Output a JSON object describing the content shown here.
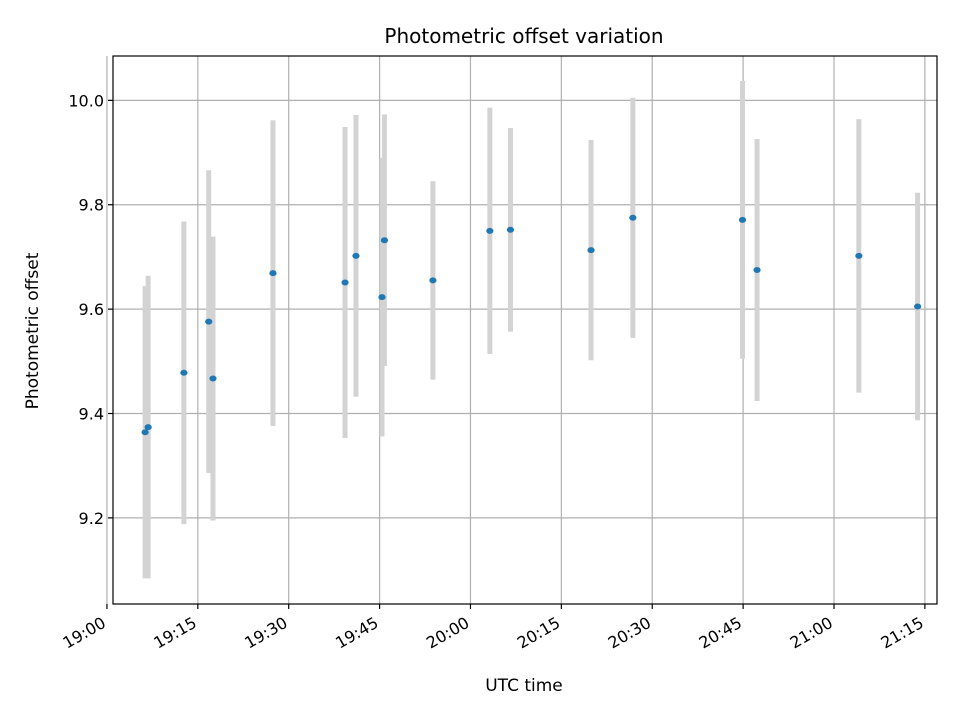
{
  "chart_data": {
    "type": "scatter",
    "title": "Photometric offset variation",
    "xlabel": "UTC time",
    "ylabel": "Photometric offset",
    "x_is_time": true,
    "xlim": [
      "19:01",
      "21:17"
    ],
    "ylim": [
      9.035,
      10.085
    ],
    "xticks": [
      "19:00",
      "19:15",
      "19:30",
      "19:45",
      "20:00",
      "20:15",
      "20:30",
      "20:45",
      "21:00",
      "21:15"
    ],
    "yticks": [
      9.2,
      9.4,
      9.6,
      9.8,
      10.0
    ],
    "ytick_labels": [
      "9.2",
      "9.4",
      "9.6",
      "9.8",
      "10.0"
    ],
    "grid": true,
    "colors": {
      "point": "#1f77b4",
      "errorbar": "#d3d3d3",
      "grid": "#b0b0b0",
      "axis": "#000000"
    },
    "points": [
      {
        "t": "19:06:18",
        "y": 9.364,
        "err": 0.28
      },
      {
        "t": "19:06:48",
        "y": 9.374,
        "err": 0.29
      },
      {
        "t": "19:12:42",
        "y": 9.478,
        "err": 0.29
      },
      {
        "t": "19:16:48",
        "y": 9.576,
        "err": 0.29
      },
      {
        "t": "19:17:30",
        "y": 9.467,
        "err": 0.272
      },
      {
        "t": "19:27:24",
        "y": 9.669,
        "err": 0.293
      },
      {
        "t": "19:39:18",
        "y": 9.651,
        "err": 0.298
      },
      {
        "t": "19:41:06",
        "y": 9.702,
        "err": 0.27
      },
      {
        "t": "19:45:24",
        "y": 9.623,
        "err": 0.267
      },
      {
        "t": "19:45:48",
        "y": 9.732,
        "err": 0.241
      },
      {
        "t": "19:53:48",
        "y": 9.655,
        "err": 0.19
      },
      {
        "t": "20:03:12",
        "y": 9.75,
        "err": 0.236
      },
      {
        "t": "20:06:36",
        "y": 9.752,
        "err": 0.195
      },
      {
        "t": "20:19:54",
        "y": 9.713,
        "err": 0.211
      },
      {
        "t": "20:26:48",
        "y": 9.775,
        "err": 0.23
      },
      {
        "t": "20:44:54",
        "y": 9.771,
        "err": 0.266
      },
      {
        "t": "20:47:18",
        "y": 9.675,
        "err": 0.251
      },
      {
        "t": "21:04:06",
        "y": 9.702,
        "err": 0.262
      },
      {
        "t": "21:13:48",
        "y": 9.605,
        "err": 0.218
      }
    ]
  }
}
